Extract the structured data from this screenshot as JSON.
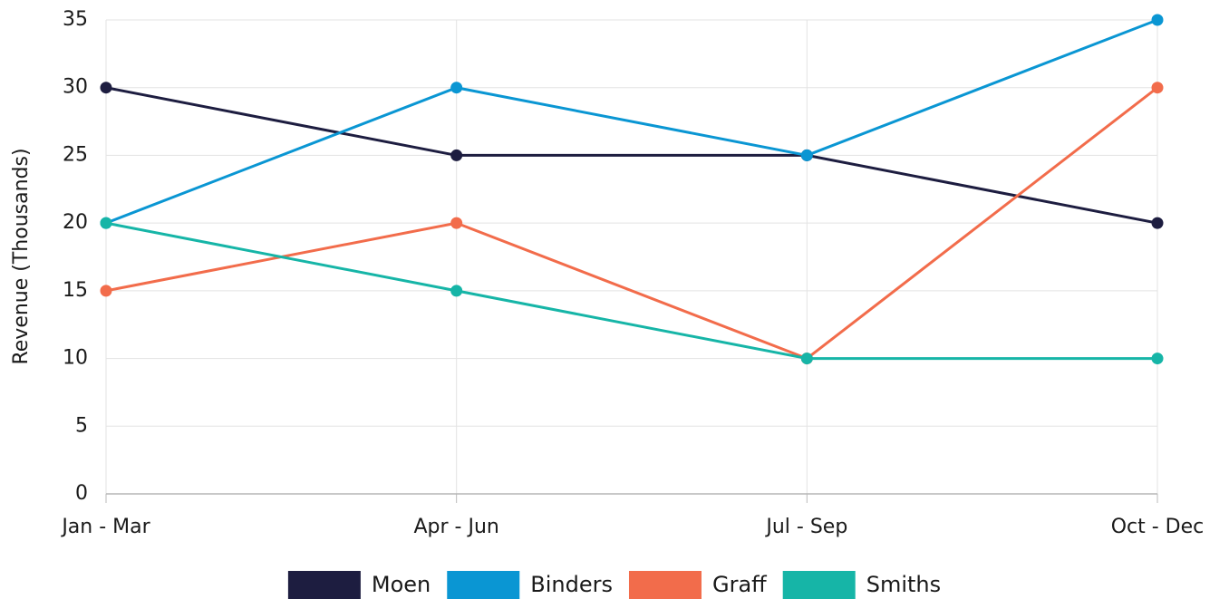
{
  "chart_data": {
    "type": "line",
    "y_label": "Revenue (Thousands)",
    "categories": [
      "Jan - Mar",
      "Apr - Jun",
      "Jul - Sep",
      "Oct - Dec"
    ],
    "series": [
      {
        "name": "Moen",
        "color": "#1d1d40",
        "values": [
          30,
          25,
          25,
          20
        ]
      },
      {
        "name": "Binders",
        "color": "#0a96d3",
        "values": [
          20,
          30,
          25,
          35
        ]
      },
      {
        "name": "Graff",
        "color": "#f26c4b",
        "values": [
          15,
          20,
          10,
          30
        ]
      },
      {
        "name": "Smiths",
        "color": "#16b5a7",
        "values": [
          20,
          15,
          10,
          10
        ]
      }
    ],
    "ylim": [
      0,
      35
    ],
    "yticks": [
      0,
      5,
      10,
      15,
      20,
      25,
      30,
      35
    ],
    "grid": true,
    "legend": "bottom"
  }
}
